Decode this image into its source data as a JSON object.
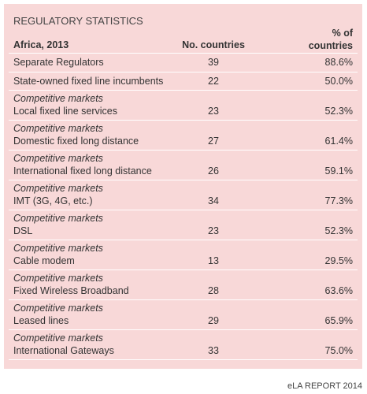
{
  "header": {
    "title": "REGULATORY STATISTICS"
  },
  "table": {
    "columns": [
      "Africa, 2013",
      "No. countries",
      "% of countries"
    ],
    "rows": [
      {
        "label": "Separate Regulators",
        "count": 39,
        "percent": "88.6%"
      },
      {
        "label": "State-owned fixed line incumbents",
        "count": 22,
        "percent": "50.0%"
      },
      {
        "group": "Competitive markets",
        "label": "Local fixed line services",
        "count": 23,
        "percent": "52.3%"
      },
      {
        "group": "Competitive markets",
        "label": "Domestic fixed long distance",
        "count": 27,
        "percent": "61.4%"
      },
      {
        "group": "Competitive markets",
        "label": "International fixed long distance",
        "count": 26,
        "percent": "59.1%"
      },
      {
        "group": "Competitive markets",
        "label": "IMT (3G, 4G, etc.)",
        "count": 34,
        "percent": "77.3%"
      },
      {
        "group": "Competitive markets",
        "label": "DSL",
        "count": 23,
        "percent": "52.3%"
      },
      {
        "group": "Competitive markets",
        "label": "Cable modem",
        "count": 13,
        "percent": "29.5%"
      },
      {
        "group": "Competitive markets",
        "label": "Fixed Wireless Broadband",
        "count": 28,
        "percent": "63.6%"
      },
      {
        "group": "Competitive markets",
        "label": "Leased lines",
        "count": 29,
        "percent": "65.9%"
      },
      {
        "group": "Competitive markets",
        "label": "International Gateways",
        "count": 33,
        "percent": "75.0%"
      }
    ]
  },
  "footer": {
    "source": "eLA REPORT 2014"
  }
}
